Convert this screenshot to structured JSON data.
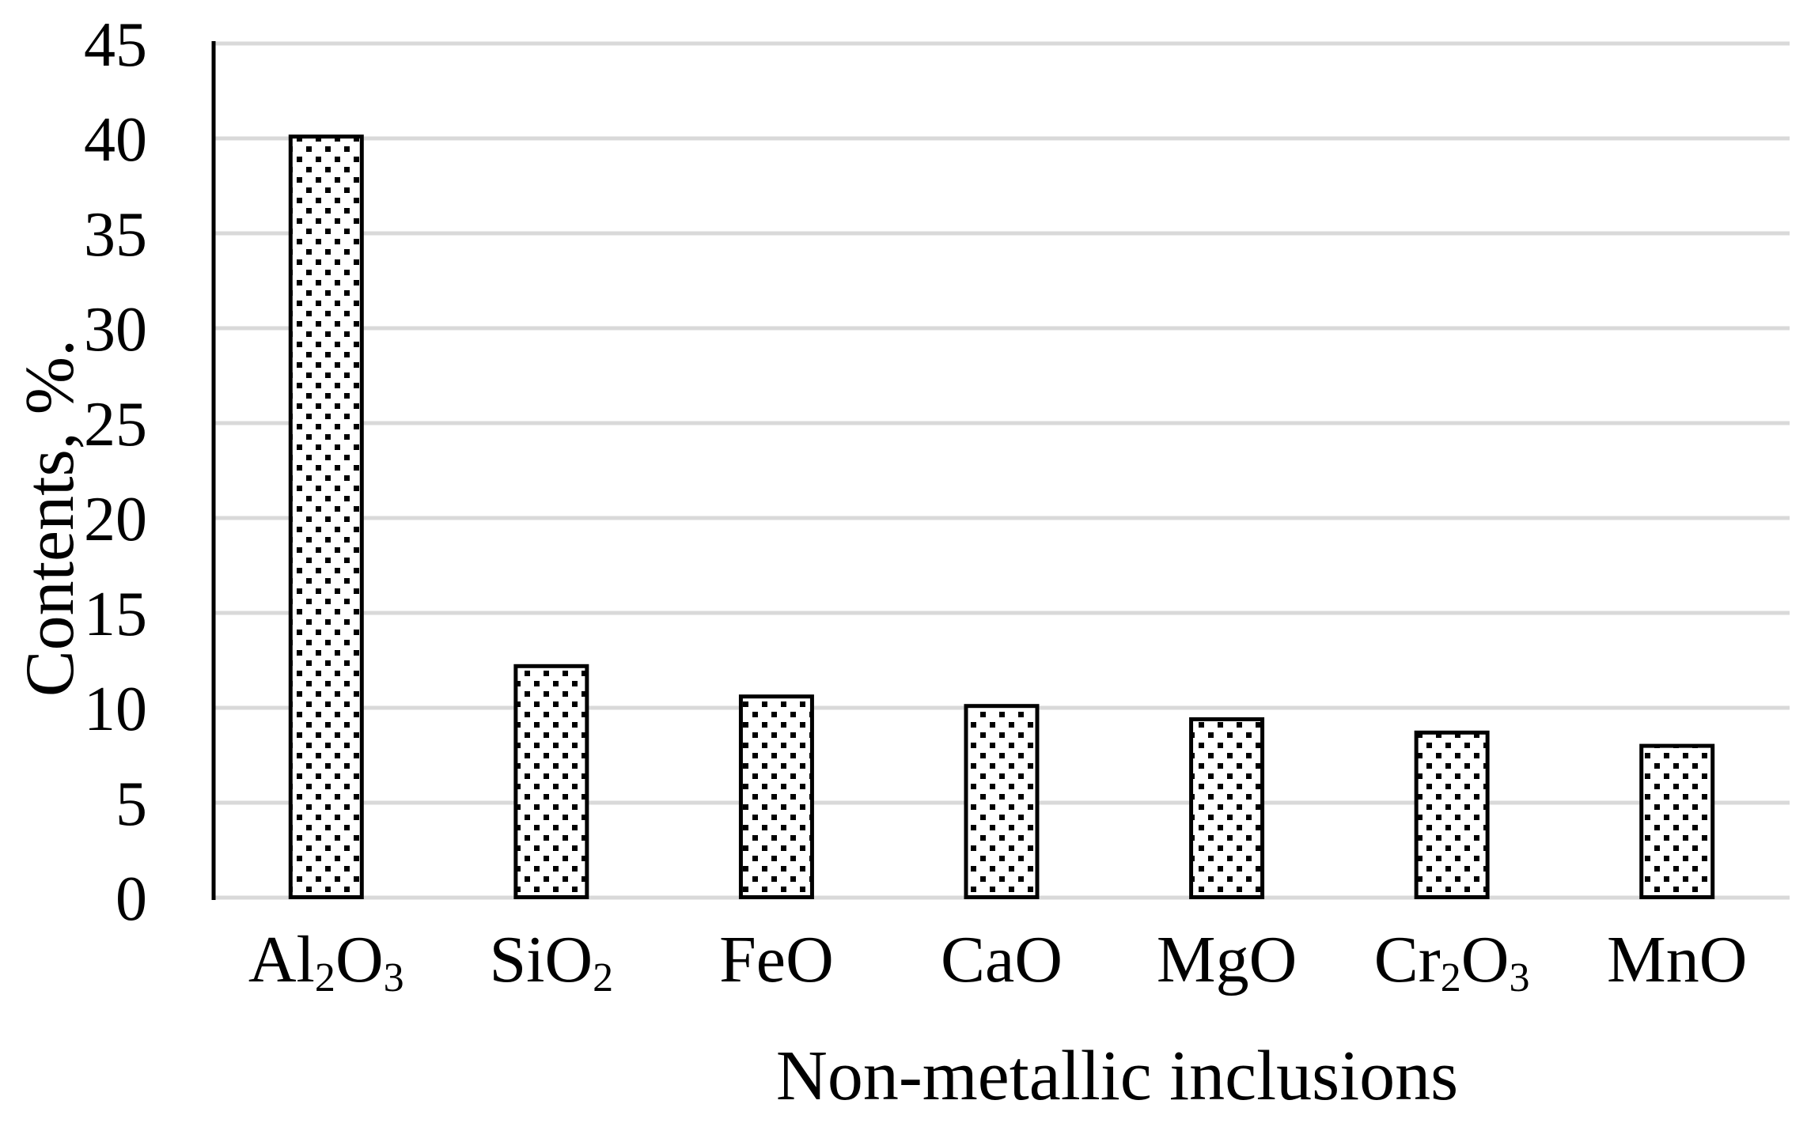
{
  "chart_data": {
    "type": "bar",
    "title": "",
    "xlabel": "Non-metallic inclusions",
    "ylabel": "Contents, %.",
    "categories": [
      "Al2O3",
      "SiO2",
      "FeO",
      "CaO",
      "MgO",
      "Cr2O3",
      "MnO"
    ],
    "categories_rich": [
      [
        {
          "t": "Al"
        },
        {
          "t": "2",
          "sub": true
        },
        {
          "t": "O"
        },
        {
          "t": "3",
          "sub": true
        }
      ],
      [
        {
          "t": "SiO"
        },
        {
          "t": "2",
          "sub": true
        }
      ],
      [
        {
          "t": "FeO"
        }
      ],
      [
        {
          "t": "CaO"
        }
      ],
      [
        {
          "t": "MgO"
        }
      ],
      [
        {
          "t": "Cr"
        },
        {
          "t": "2",
          "sub": true
        },
        {
          "t": "O"
        },
        {
          "t": "3",
          "sub": true
        }
      ],
      [
        {
          "t": "MnO"
        }
      ]
    ],
    "values": [
      40.2,
      12.3,
      10.7,
      10.2,
      9.5,
      8.8,
      8.1
    ],
    "ylim": [
      0,
      45
    ],
    "yticks": [
      0,
      5,
      10,
      15,
      20,
      25,
      30,
      35,
      40,
      45
    ],
    "grid": "horizontal",
    "legend": "none",
    "bar_fill": "dotted-pattern",
    "colors": {
      "background": "#ffffff",
      "text": "#000000",
      "gridline": "#d9d9d9",
      "axis_line": "#000000",
      "bar_outline": "#000000",
      "bar_fill_base": "#ffffff",
      "bar_dot": "#000000"
    }
  }
}
